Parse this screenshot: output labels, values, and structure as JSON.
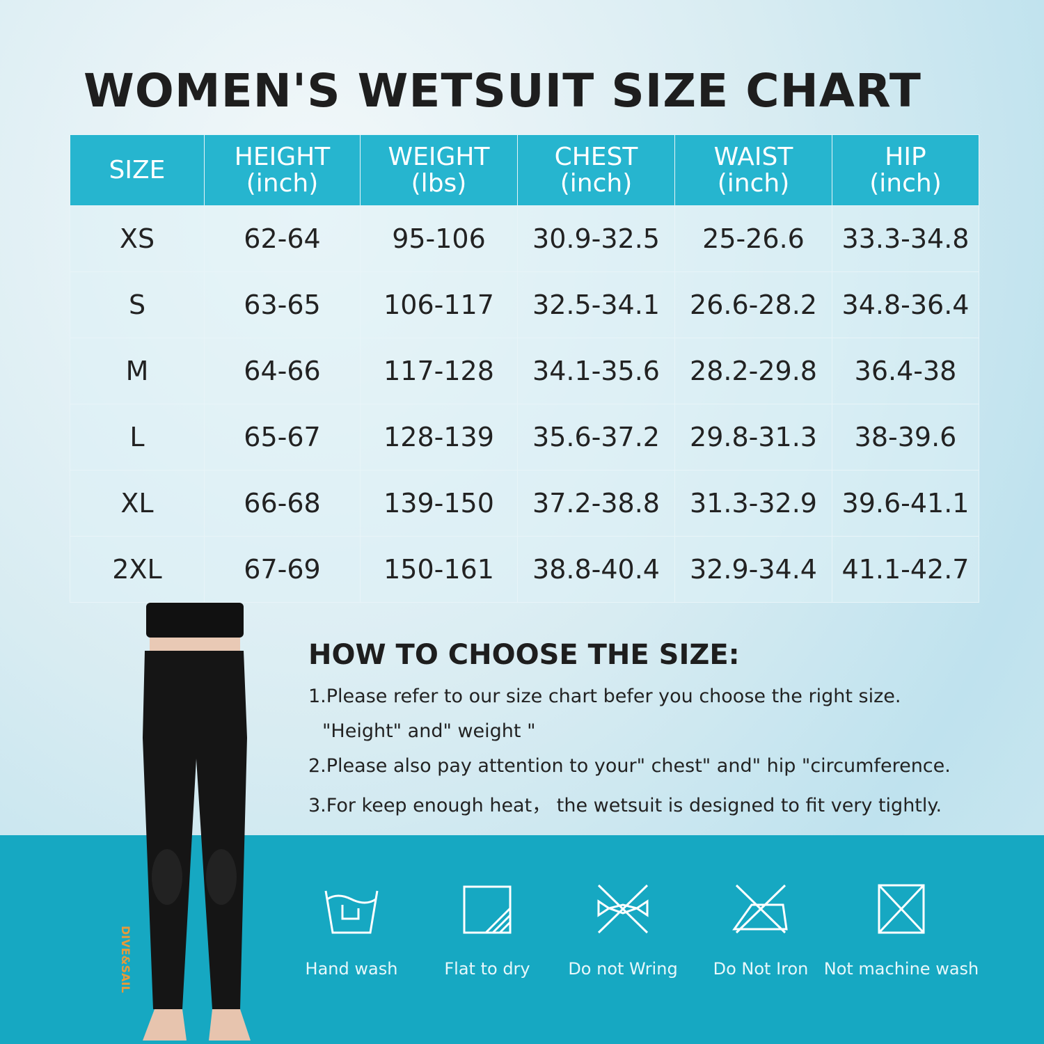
{
  "title": "WOMEN'S WETSUIT SIZE CHART",
  "table": {
    "header": [
      {
        "name": "SIZE"
      },
      {
        "name": "HEIGHT",
        "unit": "(inch)"
      },
      {
        "name": "WEIGHT",
        "unit": "(lbs)"
      },
      {
        "name": "CHEST",
        "unit": "(inch)"
      },
      {
        "name": "WAIST",
        "unit": "(inch)"
      },
      {
        "name": "HIP",
        "unit": "(inch)"
      }
    ],
    "rows": [
      [
        "XS",
        "62-64",
        "95-106",
        "30.9-32.5",
        "25-26.6",
        "33.3-34.8"
      ],
      [
        "S",
        "63-65",
        "106-117",
        "32.5-34.1",
        "26.6-28.2",
        "34.8-36.4"
      ],
      [
        "M",
        "64-66",
        "117-128",
        "34.1-35.6",
        "28.2-29.8",
        "36.4-38"
      ],
      [
        "L",
        "65-67",
        "128-139",
        "35.6-37.2",
        "29.8-31.3",
        "38-39.6"
      ],
      [
        "XL",
        "66-68",
        "139-150",
        "37.2-38.8",
        "31.3-32.9",
        "39.6-41.1"
      ],
      [
        "2XL",
        "67-69",
        "150-161",
        "38.8-40.4",
        "32.9-34.4",
        "41.1-42.7"
      ]
    ]
  },
  "howto": {
    "title": "HOW TO CHOOSE THE SIZE:",
    "lines": [
      "1.Please refer to our size chart befer you choose the right size.",
      "\"Height\" and\" weight \"",
      "2.Please also pay attention to your\" chest\" and\" hip \"circumference.",
      "3.For keep enough heat， the wetsuit is designed to fit very tightly."
    ]
  },
  "care": [
    "Hand wash",
    "Flat to dry",
    "Do not Wring",
    "Do Not Iron",
    "Not machine wash"
  ],
  "brand": "DIVE&SAIL"
}
